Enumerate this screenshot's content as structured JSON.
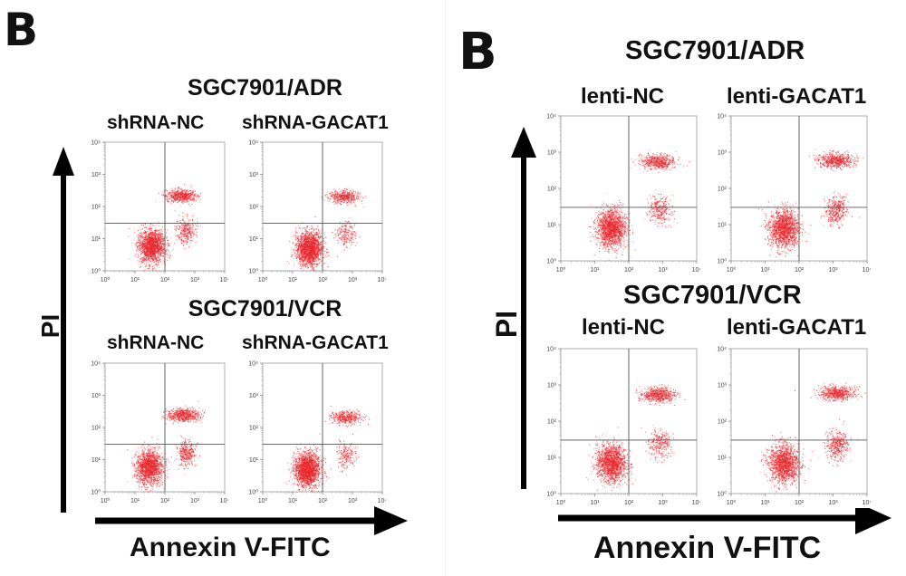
{
  "figure": {
    "left_panel": {
      "letter": "B",
      "rows": [
        {
          "title": "SGC7901/ADR",
          "plot_titles": [
            "shRNA-NC",
            "shRNA-GACAT1"
          ]
        },
        {
          "title": "SGC7901/VCR",
          "plot_titles": [
            "shRNA-NC",
            "shRNA-GACAT1"
          ]
        }
      ],
      "y_axis_label": "PI",
      "x_axis_label": "Annexin V-FITC"
    },
    "right_panel": {
      "letter": "B",
      "rows": [
        {
          "title": "SGC7901/ADR",
          "plot_titles": [
            "lenti-NC",
            "lenti-GACAT1"
          ]
        },
        {
          "title": "SGC7901/VCR",
          "plot_titles": [
            "lenti-NC",
            "lenti-GACAT1"
          ]
        }
      ],
      "y_axis_label": "PI",
      "x_axis_label": "Annexin V-FITC"
    },
    "tick_labels": [
      "10⁰",
      "10¹",
      "10²",
      "10³",
      "10⁴"
    ],
    "dot_color": "#e8262b",
    "quadrant_line_color": "#555555"
  },
  "chart_data": {
    "type": "scatter",
    "scale": "log",
    "xlim": [
      1,
      10000
    ],
    "ylim": [
      1,
      10000
    ],
    "quadrant_gate": {
      "x": 100,
      "y": 30
    },
    "plots": [
      {
        "panel": "left",
        "row": "SGC7901/ADR",
        "name": "shRNA-NC",
        "clusters": [
          {
            "population": "live",
            "x": 35,
            "y": 6,
            "share": 0.66
          },
          {
            "population": "late-apoptotic",
            "x": 350,
            "y": 220,
            "share": 0.22
          },
          {
            "population": "early-apoptotic",
            "x": 500,
            "y": 18,
            "share": 0.12
          }
        ]
      },
      {
        "panel": "left",
        "row": "SGC7901/ADR",
        "name": "shRNA-GACAT1",
        "clusters": [
          {
            "population": "live",
            "x": 35,
            "y": 5,
            "share": 0.74
          },
          {
            "population": "late-apoptotic",
            "x": 500,
            "y": 200,
            "share": 0.18
          },
          {
            "population": "early-apoptotic",
            "x": 600,
            "y": 15,
            "share": 0.08
          }
        ]
      },
      {
        "panel": "left",
        "row": "SGC7901/VCR",
        "name": "shRNA-NC",
        "clusters": [
          {
            "population": "live",
            "x": 30,
            "y": 6,
            "share": 0.62
          },
          {
            "population": "late-apoptotic",
            "x": 400,
            "y": 250,
            "share": 0.24
          },
          {
            "population": "early-apoptotic",
            "x": 500,
            "y": 16,
            "share": 0.14
          }
        ]
      },
      {
        "panel": "left",
        "row": "SGC7901/VCR",
        "name": "shRNA-GACAT1",
        "clusters": [
          {
            "population": "live",
            "x": 30,
            "y": 5,
            "share": 0.76
          },
          {
            "population": "late-apoptotic",
            "x": 600,
            "y": 210,
            "share": 0.16
          },
          {
            "population": "early-apoptotic",
            "x": 600,
            "y": 14,
            "share": 0.08
          }
        ]
      },
      {
        "panel": "right",
        "row": "SGC7901/ADR",
        "name": "lenti-NC",
        "clusters": [
          {
            "population": "live",
            "x": 30,
            "y": 8,
            "share": 0.66
          },
          {
            "population": "late-apoptotic",
            "x": 700,
            "y": 550,
            "share": 0.22
          },
          {
            "population": "early-apoptotic",
            "x": 800,
            "y": 25,
            "share": 0.12
          }
        ]
      },
      {
        "panel": "right",
        "row": "SGC7901/ADR",
        "name": "lenti-GACAT1",
        "clusters": [
          {
            "population": "live",
            "x": 35,
            "y": 8,
            "share": 0.6
          },
          {
            "population": "late-apoptotic",
            "x": 1200,
            "y": 600,
            "share": 0.24
          },
          {
            "population": "early-apoptotic",
            "x": 1200,
            "y": 25,
            "share": 0.16
          }
        ]
      },
      {
        "panel": "right",
        "row": "SGC7901/VCR",
        "name": "lenti-NC",
        "clusters": [
          {
            "population": "live",
            "x": 30,
            "y": 7,
            "share": 0.64
          },
          {
            "population": "late-apoptotic",
            "x": 700,
            "y": 550,
            "share": 0.24
          },
          {
            "population": "early-apoptotic",
            "x": 800,
            "y": 25,
            "share": 0.12
          }
        ]
      },
      {
        "panel": "right",
        "row": "SGC7901/VCR",
        "name": "lenti-GACAT1",
        "clusters": [
          {
            "population": "live",
            "x": 35,
            "y": 7,
            "share": 0.6
          },
          {
            "population": "late-apoptotic",
            "x": 1300,
            "y": 600,
            "share": 0.24
          },
          {
            "population": "early-apoptotic",
            "x": 1300,
            "y": 22,
            "share": 0.16
          }
        ]
      }
    ]
  }
}
